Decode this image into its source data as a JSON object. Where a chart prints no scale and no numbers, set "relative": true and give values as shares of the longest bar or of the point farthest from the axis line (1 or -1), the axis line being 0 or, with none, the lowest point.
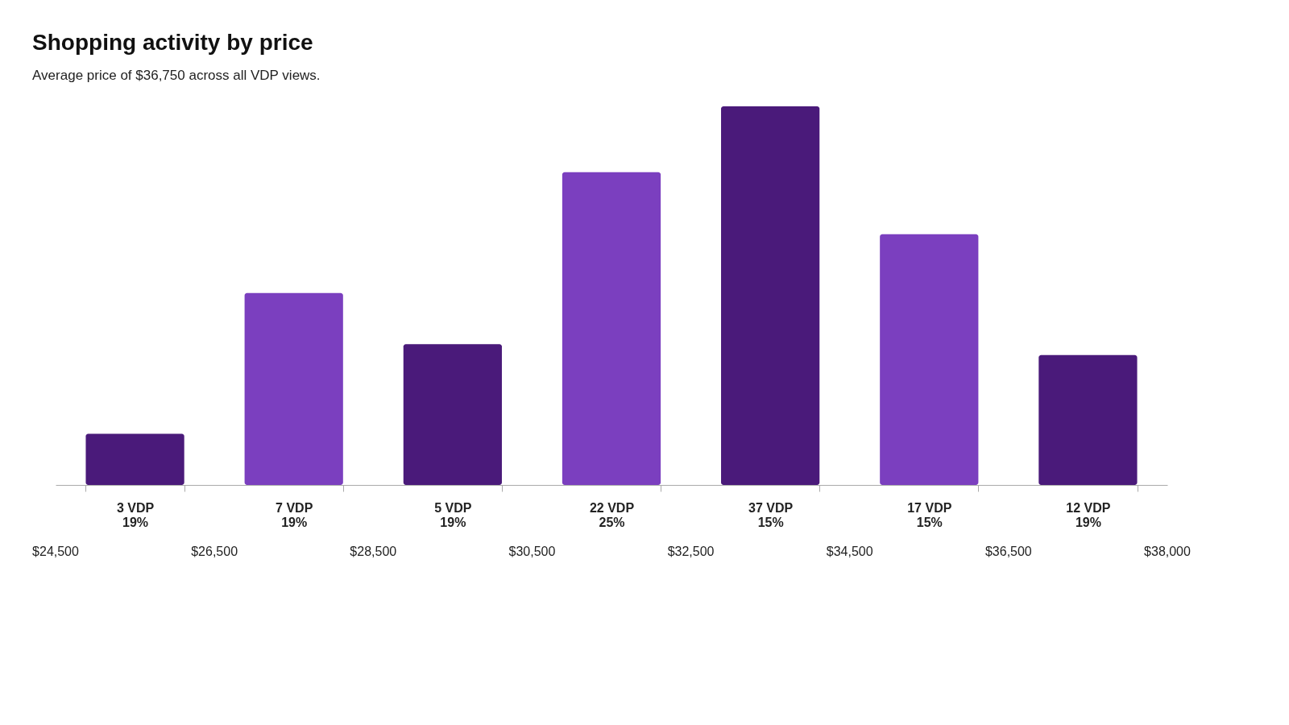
{
  "chart_data": {
    "type": "bar",
    "title": "Shopping activity by price",
    "subtitle": "Average price of $36,750 across all VDP views.",
    "categories": [
      "3 VDP\n19%",
      "7 VDP\n19%",
      "5 VDP\n19%",
      "22 VDP\n25%",
      "37 VDP\n15%",
      "17 VDP\n15%",
      "12 VDP\n19%"
    ],
    "values": [
      0.135,
      0.507,
      0.372,
      0.826,
      1,
      0.662,
      0.343
    ],
    "relative": true,
    "colors": [
      "#4a1a7a",
      "#7b3fbf",
      "#4a1a7a",
      "#7b3fbf",
      "#4a1a7a",
      "#7b3fbf",
      "#4a1a7a"
    ],
    "annotations": [
      "$24,500",
      "$26,500",
      "$28,500",
      "$30,500",
      "$32,500",
      "$34,500",
      "$36,500",
      "$38,000"
    ],
    "grid": false
  }
}
